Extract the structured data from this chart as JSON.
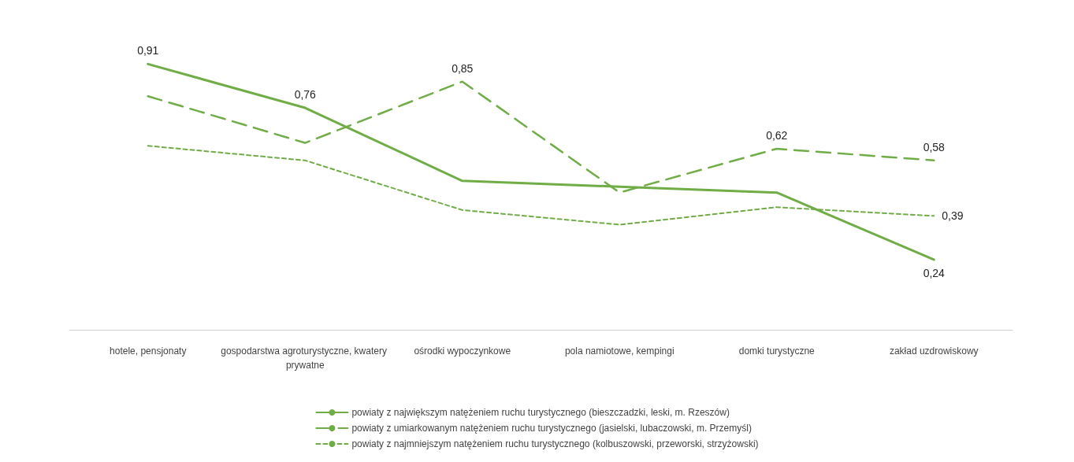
{
  "chart_data": {
    "type": "line",
    "categories": [
      "hotele, pensjonaty",
      "gospodarstwa agroturystyczne, kwatery prywatne",
      "ośrodki wypoczynkowe",
      "pola namiotowe, kempingi",
      "domki turystyczne",
      "zakład uzdrowiskowy"
    ],
    "series": [
      {
        "name": "powiaty z największym natężeniem ruchu turystycznego (bieszczadzki, leski, m. Rzeszów)",
        "color": "#70ad47",
        "line_style": "solid",
        "values": [
          0.91,
          0.76,
          0.51,
          0.49,
          0.47,
          0.24
        ],
        "value_labels": [
          "0,91",
          "0,76",
          null,
          null,
          null,
          "0,24"
        ]
      },
      {
        "name": "powiaty z umiarkowanym natężeniem ruchu turystycznego (jasielski, lubaczowski, m. Przemyśl)",
        "color": "#70ad47",
        "line_style": "dashed",
        "values": [
          0.8,
          0.64,
          0.85,
          0.47,
          0.62,
          0.58
        ],
        "value_labels": [
          null,
          null,
          "0,85",
          null,
          "0,62",
          "0,58"
        ]
      },
      {
        "name": "powiaty z najmniejszym natężeniem ruchu turystycznego (kolbuszowski, przeworski, strzyżowski)",
        "color": "#70ad47",
        "line_style": "dotted",
        "values": [
          0.63,
          0.58,
          0.41,
          0.36,
          0.42,
          0.39
        ],
        "value_labels": [
          null,
          null,
          null,
          null,
          null,
          "0,39"
        ]
      }
    ],
    "marker": "none",
    "legend": "bottom"
  }
}
